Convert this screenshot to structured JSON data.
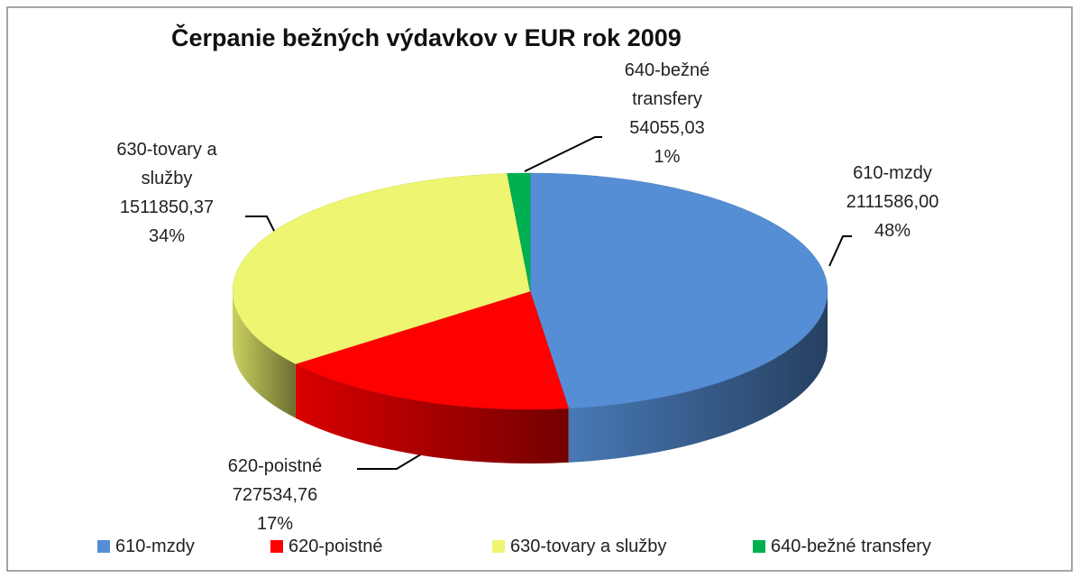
{
  "chart_data": {
    "type": "pie3d",
    "title": "Čerpanie bežných výdavkov v EUR rok 2009",
    "categories": [
      "610-mzdy",
      "620-poistné",
      "630-tovary a služby",
      "640-bežné transfery"
    ],
    "values": [
      2111586.0,
      727534.76,
      1511850.37,
      54055.03
    ],
    "value_labels": [
      "2111586,00",
      "727534,76",
      "1511850,37",
      "54055,03"
    ],
    "percent_values": [
      48,
      17,
      34,
      1
    ],
    "percent_labels": [
      "48%",
      "17%",
      "34%",
      "1%"
    ],
    "colors": [
      "#558ed5",
      "#ff0000",
      "#eef570",
      "#00b050"
    ],
    "legend": "bottom"
  }
}
